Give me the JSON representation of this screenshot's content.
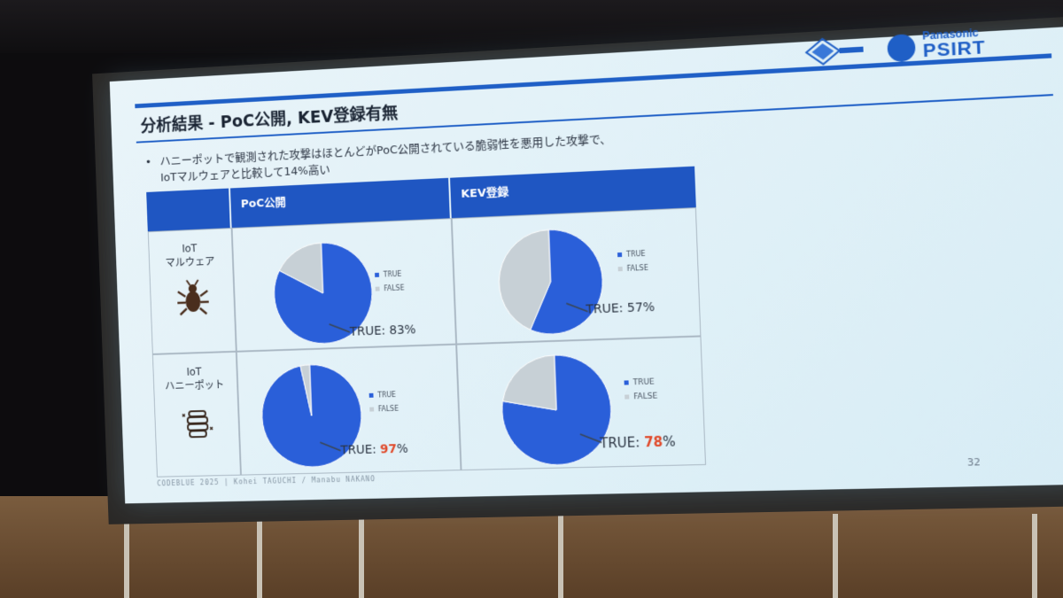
{
  "slide": {
    "title": "分析結果 - PoC公開, KEV登録有無",
    "bullet_line1": "ハニーポットで観測された攻撃はほとんどがPoC公開されている脆弱性を悪用した攻撃で、",
    "bullet_line2": "IoTマルウェアと比較して14%高い",
    "footer": "CODEBLUE 2025 | Kohei TAGUCHI / Manabu NAKANO",
    "page_number": "32"
  },
  "logo": {
    "brand": "Panasonic",
    "name": "PSIRT"
  },
  "table": {
    "col_poc": "PoC公開",
    "col_kev": "KEV登録",
    "row1_line1": "IoT",
    "row1_line2": "マルウェア",
    "row2_line1": "IoT",
    "row2_line2": "ハニーポット",
    "row1_icon": "bug-icon",
    "row2_icon": "honeypot-icon"
  },
  "legend": {
    "true_label": "TRUE",
    "false_label": "FALSE"
  },
  "colors": {
    "true": "#2a5fd9",
    "false": "#c7d0d6",
    "header": "#1f56c2",
    "highlight": "#e04a2b"
  },
  "chart_data": [
    {
      "type": "pie",
      "categories": [
        "TRUE",
        "FALSE"
      ],
      "values": [
        83,
        17
      ],
      "annotation": "TRUE: 83%"
    },
    {
      "type": "pie",
      "categories": [
        "TRUE",
        "FALSE"
      ],
      "values": [
        57,
        43
      ],
      "annotation": "TRUE: 57%"
    },
    {
      "type": "pie",
      "categories": [
        "TRUE",
        "FALSE"
      ],
      "values": [
        97,
        3
      ],
      "annotation_prefix": "TRUE: ",
      "annotation_value": "97",
      "annotation_suffix": "%"
    },
    {
      "type": "pie",
      "categories": [
        "TRUE",
        "FALSE"
      ],
      "values": [
        78,
        22
      ],
      "annotation_prefix": "TRUE: ",
      "annotation_value": "78",
      "annotation_suffix": "%"
    }
  ]
}
